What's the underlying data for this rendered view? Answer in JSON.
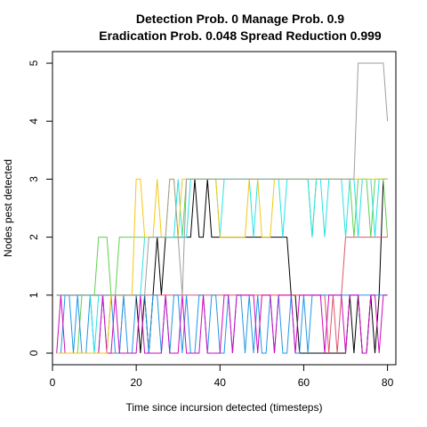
{
  "chart_data": {
    "type": "line",
    "title_line1": "Detection Prob. 0 Manage Prob. 0.9",
    "title_line2": "Eradication Prob. 0.048 Spread Reduction 0.999",
    "xlabel": "Time since incursion detected (timesteps)",
    "ylabel": "Nodes pest detected",
    "xlim": [
      0,
      82
    ],
    "ylim": [
      -0.2,
      5.2
    ],
    "xticks": [
      0,
      20,
      40,
      60,
      80
    ],
    "yticks": [
      0,
      1,
      2,
      3,
      4,
      5
    ],
    "grid": false,
    "legend": "none",
    "series": [
      {
        "color": "#000000",
        "x": [
          1,
          2,
          3,
          4,
          5,
          6,
          7,
          8,
          9,
          10,
          11,
          12,
          13,
          14,
          15,
          16,
          17,
          18,
          19,
          20,
          21,
          22,
          23,
          24,
          25,
          26,
          27,
          28,
          29,
          30,
          31,
          32,
          33,
          34,
          35,
          36,
          37,
          38,
          39,
          40,
          41,
          42,
          43,
          44,
          45,
          46,
          47,
          48,
          49,
          50,
          51,
          52,
          53,
          54,
          55,
          56,
          57,
          58,
          59,
          60,
          61,
          62,
          63,
          64,
          65,
          66,
          67,
          68,
          69,
          70,
          71,
          72,
          73,
          74,
          75,
          76,
          77,
          78,
          79,
          80
        ],
        "y": [
          1,
          1,
          1,
          1,
          1,
          1,
          1,
          1,
          1,
          1,
          1,
          1,
          1,
          1,
          1,
          1,
          1,
          1,
          1,
          1,
          0,
          1,
          0,
          1,
          2,
          1,
          2,
          2,
          2,
          2,
          2,
          2,
          2,
          3,
          2,
          2,
          3,
          2,
          2,
          2,
          2,
          2,
          2,
          2,
          2,
          2,
          2,
          2,
          2,
          2,
          2,
          2,
          2,
          2,
          2,
          2,
          1,
          1,
          0,
          0,
          0,
          0,
          0,
          0,
          0,
          0,
          0,
          0,
          0,
          0,
          1,
          0,
          1,
          0,
          0,
          1,
          0,
          1,
          3,
          3
        ]
      },
      {
        "color": "#DF536B",
        "x": [
          1,
          2,
          3,
          4,
          5,
          6,
          7,
          8,
          9,
          10,
          11,
          12,
          13,
          14,
          15,
          16,
          17,
          18,
          19,
          20,
          21,
          22,
          23,
          24,
          25,
          26,
          27,
          28,
          29,
          30,
          31,
          32,
          33,
          34,
          35,
          36,
          37,
          38,
          39,
          40,
          41,
          42,
          43,
          44,
          45,
          46,
          47,
          48,
          49,
          50,
          51,
          52,
          53,
          54,
          55,
          56,
          57,
          58,
          59,
          60,
          61,
          62,
          63,
          64,
          65,
          66,
          67,
          68,
          69,
          70,
          71,
          72,
          73,
          74,
          75,
          76,
          77,
          78,
          79,
          80
        ],
        "y": [
          0,
          0,
          0,
          0,
          0,
          0,
          0,
          0,
          0,
          0,
          0,
          0,
          0,
          0,
          0,
          0,
          1,
          1,
          1,
          1,
          1,
          1,
          1,
          1,
          1,
          1,
          1,
          1,
          1,
          1,
          1,
          1,
          1,
          1,
          1,
          1,
          1,
          1,
          1,
          1,
          1,
          1,
          1,
          1,
          1,
          1,
          1,
          1,
          1,
          1,
          1,
          1,
          1,
          1,
          1,
          1,
          1,
          1,
          1,
          1,
          1,
          1,
          1,
          1,
          1,
          0,
          1,
          0,
          1,
          2,
          2,
          2,
          2,
          2,
          2,
          2,
          2,
          2,
          2,
          2
        ]
      },
      {
        "color": "#61D04F",
        "x": [
          1,
          2,
          3,
          4,
          5,
          6,
          7,
          8,
          9,
          10,
          11,
          12,
          13,
          14,
          15,
          16,
          17,
          18,
          19,
          20,
          21,
          22,
          23,
          24,
          25,
          26,
          27,
          28,
          29,
          30,
          31,
          32,
          33,
          34,
          35,
          36,
          37,
          38,
          39,
          40,
          41,
          42,
          43,
          44,
          45,
          46,
          47,
          48,
          49,
          50,
          51,
          52,
          53,
          54,
          55,
          56,
          57,
          58,
          59,
          60,
          61,
          62,
          63,
          64,
          65,
          66,
          67,
          68,
          69,
          70,
          71,
          72,
          73,
          74,
          75,
          76,
          77,
          78,
          79,
          80
        ],
        "y": [
          0,
          0,
          0,
          0,
          0,
          0,
          1,
          1,
          1,
          1,
          2,
          2,
          2,
          1,
          1,
          2,
          2,
          2,
          2,
          2,
          2,
          2,
          2,
          2,
          2,
          2,
          2,
          2,
          2,
          2,
          2,
          3,
          3,
          3,
          3,
          3,
          3,
          3,
          3,
          3,
          3,
          3,
          3,
          3,
          3,
          3,
          3,
          3,
          3,
          3,
          3,
          3,
          3,
          3,
          3,
          3,
          3,
          3,
          3,
          3,
          3,
          2,
          3,
          3,
          3,
          3,
          3,
          3,
          3,
          3,
          3,
          2,
          3,
          3,
          3,
          2,
          3,
          3,
          3,
          2
        ]
      },
      {
        "color": "#2297E6",
        "x": [
          1,
          2,
          3,
          4,
          5,
          6,
          7,
          8,
          9,
          10,
          11,
          12,
          13,
          14,
          15,
          16,
          17,
          18,
          19,
          20,
          21,
          22,
          23,
          24,
          25,
          26,
          27,
          28,
          29,
          30,
          31,
          32,
          33,
          34,
          35,
          36,
          37,
          38,
          39,
          40,
          41,
          42,
          43,
          44,
          45,
          46,
          47,
          48,
          49,
          50,
          51,
          52,
          53,
          54,
          55,
          56,
          57,
          58,
          59,
          60,
          61,
          62,
          63,
          64,
          65,
          66,
          67,
          68,
          69,
          70,
          71,
          72,
          73,
          74,
          75,
          76,
          77,
          78,
          79,
          80
        ],
        "y": [
          0,
          0,
          1,
          1,
          0,
          1,
          0,
          0,
          1,
          0,
          0,
          1,
          0,
          1,
          0,
          0,
          1,
          0,
          0,
          1,
          1,
          1,
          0,
          1,
          1,
          0,
          1,
          0,
          1,
          1,
          0,
          1,
          0,
          0,
          1,
          1,
          0,
          1,
          1,
          0,
          0,
          1,
          0,
          1,
          1,
          0,
          1,
          0,
          1,
          0,
          0,
          1,
          0,
          1,
          0,
          0,
          1,
          0,
          0,
          1,
          0,
          1,
          1,
          1,
          1,
          1,
          1,
          1,
          1,
          1,
          1,
          1,
          1,
          1,
          1,
          1,
          1,
          1,
          1,
          1
        ]
      },
      {
        "color": "#28E2E5",
        "x": [
          1,
          2,
          3,
          4,
          5,
          6,
          7,
          8,
          9,
          10,
          11,
          12,
          13,
          14,
          15,
          16,
          17,
          18,
          19,
          20,
          21,
          22,
          23,
          24,
          25,
          26,
          27,
          28,
          29,
          30,
          31,
          32,
          33,
          34,
          35,
          36,
          37,
          38,
          39,
          40,
          41,
          42,
          43,
          44,
          45,
          46,
          47,
          48,
          49,
          50,
          51,
          52,
          53,
          54,
          55,
          56,
          57,
          58,
          59,
          60,
          61,
          62,
          63,
          64,
          65,
          66,
          67,
          68,
          69,
          70,
          71,
          72,
          73,
          74,
          75,
          76,
          77,
          78,
          79,
          80
        ],
        "y": [
          1,
          1,
          1,
          1,
          1,
          1,
          1,
          1,
          1,
          0,
          1,
          1,
          1,
          1,
          1,
          1,
          1,
          1,
          1,
          1,
          1,
          2,
          2,
          2,
          2,
          2,
          2,
          2,
          2,
          3,
          2,
          2,
          3,
          3,
          3,
          3,
          3,
          3,
          3,
          2,
          3,
          3,
          3,
          3,
          3,
          3,
          3,
          2,
          3,
          3,
          3,
          3,
          3,
          3,
          2,
          3,
          3,
          3,
          3,
          3,
          3,
          2,
          3,
          3,
          2,
          3,
          3,
          3,
          3,
          2,
          3,
          3,
          2,
          3,
          3,
          3,
          2,
          3,
          3,
          3
        ]
      },
      {
        "color": "#CD0BBC",
        "x": [
          1,
          2,
          3,
          4,
          5,
          6,
          7,
          8,
          9,
          10,
          11,
          12,
          13,
          14,
          15,
          16,
          17,
          18,
          19,
          20,
          21,
          22,
          23,
          24,
          25,
          26,
          27,
          28,
          29,
          30,
          31,
          32,
          33,
          34,
          35,
          36,
          37,
          38,
          39,
          40,
          41,
          42,
          43,
          44,
          45,
          46,
          47,
          48,
          49,
          50,
          51,
          52,
          53,
          54,
          55,
          56,
          57,
          58,
          59,
          60,
          61,
          62,
          63,
          64,
          65,
          66,
          67,
          68,
          69,
          70,
          71,
          72,
          73,
          74,
          75,
          76,
          77,
          78,
          79,
          80
        ],
        "y": [
          0,
          1,
          0,
          0,
          0,
          0,
          0,
          0,
          0,
          0,
          0,
          1,
          0,
          0,
          1,
          0,
          0,
          0,
          0,
          0,
          1,
          0,
          0,
          0,
          0,
          0,
          1,
          0,
          0,
          0,
          1,
          0,
          0,
          0,
          0,
          1,
          0,
          0,
          0,
          0,
          1,
          1,
          0,
          1,
          1,
          1,
          1,
          1,
          0,
          1,
          1,
          1,
          0,
          1,
          1,
          1,
          1,
          0,
          1,
          1,
          1,
          1,
          1,
          1,
          0,
          1,
          1,
          1,
          1,
          0,
          1,
          1,
          1,
          0,
          0,
          1,
          1,
          0,
          1,
          1
        ]
      },
      {
        "color": "#F5C710",
        "x": [
          1,
          2,
          3,
          4,
          5,
          6,
          7,
          8,
          9,
          10,
          11,
          12,
          13,
          14,
          15,
          16,
          17,
          18,
          19,
          20,
          21,
          22,
          23,
          24,
          25,
          26,
          27,
          28,
          29,
          30,
          31,
          32,
          33,
          34,
          35,
          36,
          37,
          38,
          39,
          40,
          41,
          42,
          43,
          44,
          45,
          46,
          47,
          48,
          49,
          50,
          51,
          52,
          53,
          54,
          55,
          56,
          57,
          58,
          59,
          60,
          61,
          62,
          63,
          64,
          65,
          66,
          67,
          68,
          69,
          70,
          71,
          72,
          73,
          74,
          75,
          76,
          77,
          78,
          79,
          80
        ],
        "y": [
          0,
          0,
          0,
          0,
          0,
          0,
          0,
          0,
          0,
          0,
          0,
          0,
          0,
          1,
          1,
          1,
          1,
          1,
          1,
          3,
          3,
          2,
          2,
          2,
          3,
          2,
          2,
          3,
          3,
          2,
          3,
          3,
          3,
          3,
          3,
          3,
          3,
          3,
          3,
          2,
          2,
          2,
          2,
          2,
          2,
          2,
          3,
          3,
          3,
          2,
          2,
          2,
          3,
          3,
          3,
          3,
          3,
          3,
          3,
          3,
          3,
          3,
          3,
          3,
          3,
          3,
          3,
          3,
          3,
          3,
          3,
          3,
          3,
          3,
          3,
          3,
          3,
          3,
          3,
          3
        ]
      },
      {
        "color": "#9E9E9E",
        "x": [
          1,
          2,
          3,
          4,
          5,
          6,
          7,
          8,
          9,
          10,
          11,
          12,
          13,
          14,
          15,
          16,
          17,
          18,
          19,
          20,
          21,
          22,
          23,
          24,
          25,
          26,
          27,
          28,
          29,
          30,
          31,
          32,
          33,
          34,
          35,
          36,
          37,
          38,
          39,
          40,
          41,
          42,
          43,
          44,
          45,
          46,
          47,
          48,
          49,
          50,
          51,
          52,
          53,
          54,
          55,
          56,
          57,
          58,
          59,
          60,
          61,
          62,
          63,
          64,
          65,
          66,
          67,
          68,
          69,
          70,
          71,
          72,
          73,
          74,
          75,
          76,
          77,
          78,
          79,
          80
        ],
        "y": [
          1,
          1,
          1,
          1,
          1,
          1,
          1,
          1,
          1,
          1,
          1,
          1,
          1,
          1,
          1,
          1,
          1,
          1,
          1,
          1,
          1,
          1,
          2,
          2,
          2,
          2,
          2,
          3,
          3,
          2,
          1,
          3,
          3,
          3,
          3,
          3,
          3,
          3,
          3,
          3,
          3,
          3,
          3,
          3,
          3,
          3,
          3,
          3,
          3,
          3,
          3,
          3,
          3,
          3,
          3,
          3,
          3,
          3,
          3,
          3,
          3,
          3,
          3,
          3,
          3,
          3,
          3,
          3,
          3,
          3,
          3,
          3,
          5,
          5,
          5,
          5,
          5,
          5,
          5,
          4
        ]
      }
    ]
  }
}
